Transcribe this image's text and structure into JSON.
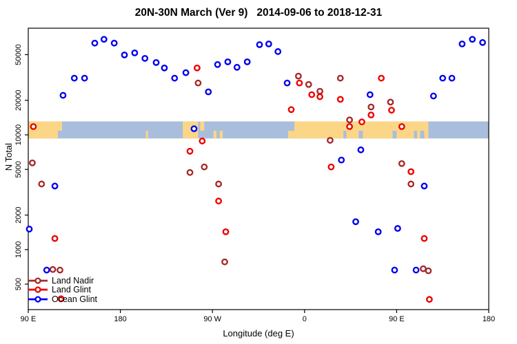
{
  "title": "20N-30N March (Ver 9)   2014-09-06 to 2018-12-31",
  "chart_data": {
    "type": "scatter",
    "xlabel": "Longitude (deg E)",
    "ylabel": "N Total",
    "x_axis": {
      "min": 90,
      "max": 540,
      "ticks": [
        {
          "value": 90,
          "label": "90 E"
        },
        {
          "value": 180,
          "label": "180"
        },
        {
          "value": 270,
          "label": "90 W"
        },
        {
          "value": 360,
          "label": "0"
        },
        {
          "value": 450,
          "label": "90 E"
        },
        {
          "value": 540,
          "label": "180"
        }
      ]
    },
    "y_axis": {
      "scale": "log",
      "min": 300,
      "max": 85000,
      "ticks": [
        {
          "value": 500,
          "label": "500"
        },
        {
          "value": 1000,
          "label": "1000"
        },
        {
          "value": 2000,
          "label": "2000"
        },
        {
          "value": 5000,
          "label": "5000"
        },
        {
          "value": 10000,
          "label": "10000"
        },
        {
          "value": 20000,
          "label": "20000"
        },
        {
          "value": 50000,
          "label": "50000"
        }
      ]
    },
    "map_band": {
      "value_range": [
        9300,
        13100
      ],
      "ocean_color": "#A9BEDC",
      "land_color": "#FBD687",
      "land_segments": [
        {
          "from": 90,
          "to": 119,
          "part": "full"
        },
        {
          "from": 119,
          "to": 123,
          "part": "top"
        },
        {
          "from": 205,
          "to": 207,
          "part": "bottom"
        },
        {
          "from": 241,
          "to": 256,
          "part": "full"
        },
        {
          "from": 258,
          "to": 262,
          "part": "top"
        },
        {
          "from": 271,
          "to": 274,
          "part": "bottom"
        },
        {
          "from": 277,
          "to": 280,
          "part": "bottom"
        },
        {
          "from": 344,
          "to": 350,
          "part": "bottom"
        },
        {
          "from": 350,
          "to": 481,
          "part": "full"
        }
      ],
      "water_notches": [
        {
          "from": 398,
          "to": 401
        },
        {
          "from": 413,
          "to": 417
        },
        {
          "from": 446,
          "to": 450
        },
        {
          "from": 467,
          "to": 470
        },
        {
          "from": 473,
          "to": 477
        }
      ]
    },
    "legend": {
      "position": "bottom-left",
      "items": [
        {
          "label": "Land Nadir",
          "color": "#A52A2A"
        },
        {
          "label": "Land Glint",
          "color": "#EE0000"
        },
        {
          "label": "Ocean Glint",
          "color": "#0000EE"
        }
      ]
    },
    "series": [
      {
        "name": "Land Nadir",
        "color": "#A52A2A",
        "marker": "open-circle",
        "points": [
          [
            94,
            5700
          ],
          [
            103,
            3730
          ],
          [
            114,
            671
          ],
          [
            121,
            663
          ],
          [
            248,
            4700
          ],
          [
            256,
            28300
          ],
          [
            262,
            5250
          ],
          [
            276,
            3730
          ],
          [
            282,
            781
          ],
          [
            354,
            32500
          ],
          [
            364,
            27500
          ],
          [
            375,
            24000
          ],
          [
            385,
            8960
          ],
          [
            395,
            31200
          ],
          [
            404,
            13500
          ],
          [
            425,
            17500
          ],
          [
            444,
            19300
          ],
          [
            455,
            5620
          ],
          [
            464,
            3730
          ],
          [
            476,
            681
          ],
          [
            481,
            653
          ]
        ]
      },
      {
        "name": "Land Glint",
        "color": "#EE0000",
        "marker": "open-circle",
        "points": [
          [
            95,
            11800
          ],
          [
            116,
            1250
          ],
          [
            122,
            373
          ],
          [
            248,
            7200
          ],
          [
            255,
            38300
          ],
          [
            260,
            8840
          ],
          [
            276,
            2650
          ],
          [
            283,
            1430
          ],
          [
            347,
            16600
          ],
          [
            355,
            28300
          ],
          [
            367,
            22400
          ],
          [
            375,
            21500
          ],
          [
            386,
            5250
          ],
          [
            395,
            20400
          ],
          [
            404,
            11800
          ],
          [
            416,
            12970
          ],
          [
            425,
            14900
          ],
          [
            435,
            31200
          ],
          [
            445,
            16400
          ],
          [
            455,
            11800
          ],
          [
            464,
            4780
          ],
          [
            477,
            1250
          ],
          [
            482,
            368
          ]
        ]
      },
      {
        "name": "Ocean Glint",
        "color": "#0000EE",
        "marker": "open-circle",
        "points": [
          [
            91,
            1510
          ],
          [
            108,
            663
          ],
          [
            116,
            3580
          ],
          [
            124,
            22100
          ],
          [
            135,
            31200
          ],
          [
            145,
            31200
          ],
          [
            155,
            63000
          ],
          [
            164,
            68000
          ],
          [
            174,
            63000
          ],
          [
            184,
            49700
          ],
          [
            194,
            51800
          ],
          [
            204,
            46400
          ],
          [
            215,
            42700
          ],
          [
            223,
            38300
          ],
          [
            233,
            31200
          ],
          [
            244,
            34800
          ],
          [
            252,
            11300
          ],
          [
            266,
            23700
          ],
          [
            275,
            41000
          ],
          [
            285,
            43300
          ],
          [
            294,
            38800
          ],
          [
            304,
            43300
          ],
          [
            316,
            61100
          ],
          [
            325,
            62000
          ],
          [
            334,
            53200
          ],
          [
            343,
            28300
          ],
          [
            396,
            6030
          ],
          [
            410,
            1750
          ],
          [
            415,
            7400
          ],
          [
            424,
            22400
          ],
          [
            432,
            1430
          ],
          [
            448,
            663
          ],
          [
            451,
            1530
          ],
          [
            469,
            663
          ],
          [
            477,
            3580
          ],
          [
            486,
            21800
          ],
          [
            495,
            31200
          ],
          [
            504,
            31200
          ],
          [
            514,
            62000
          ],
          [
            524,
            68000
          ],
          [
            534,
            63800
          ]
        ]
      }
    ]
  }
}
